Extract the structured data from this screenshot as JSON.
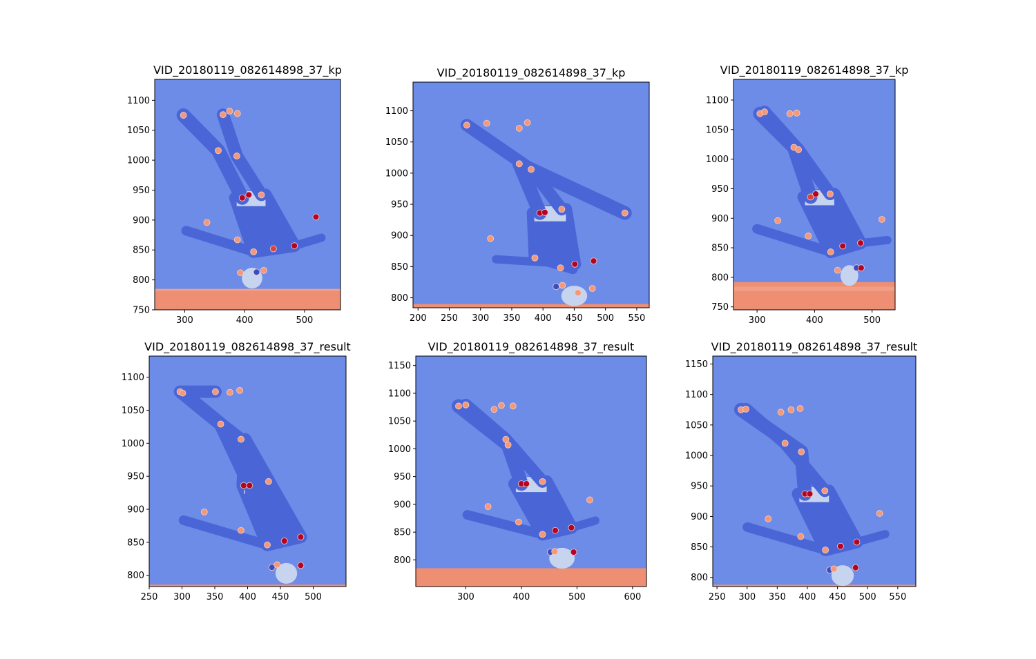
{
  "colors": {
    "background_warm": "#ee8f73",
    "ice_light": "#f3b39d",
    "wall_blue": "#6d8ce8",
    "skater_blue": "#4a66d6",
    "skater_light": "#c7d4f0",
    "dark_red": "#b40426",
    "salmon": "#f4987a",
    "mid_red": "#d6453b"
  },
  "chart_data": [
    {
      "type": "heatmap",
      "title": "VID_20180119_082614898_37_kp",
      "xlim": [
        250,
        560
      ],
      "ylim": [
        1135,
        750
      ],
      "xticks": [
        300,
        400,
        500
      ],
      "yticks": [
        750,
        800,
        850,
        900,
        950,
        1000,
        1050,
        1100
      ],
      "wall_bottom": 785,
      "keypoints": [
        {
          "x": 393,
          "y": 812,
          "c": "salmon"
        },
        {
          "x": 420,
          "y": 813,
          "c": "blue"
        },
        {
          "x": 432,
          "y": 816,
          "c": "salmon"
        },
        {
          "x": 388,
          "y": 867,
          "c": "salmon"
        },
        {
          "x": 415,
          "y": 847,
          "c": "salmon"
        },
        {
          "x": 448,
          "y": 852,
          "c": "mid"
        },
        {
          "x": 483,
          "y": 857,
          "c": "dark"
        },
        {
          "x": 337,
          "y": 896,
          "c": "salmon"
        },
        {
          "x": 519,
          "y": 905,
          "c": "dark"
        },
        {
          "x": 396,
          "y": 937,
          "c": "dark"
        },
        {
          "x": 407,
          "y": 942,
          "c": "dark"
        },
        {
          "x": 428,
          "y": 942,
          "c": "salmon"
        },
        {
          "x": 356,
          "y": 1016,
          "c": "salmon"
        },
        {
          "x": 387,
          "y": 1007,
          "c": "salmon"
        },
        {
          "x": 298,
          "y": 1075,
          "c": "salmon"
        },
        {
          "x": 364,
          "y": 1076,
          "c": "salmon"
        },
        {
          "x": 375,
          "y": 1082,
          "c": "salmon"
        },
        {
          "x": 388,
          "y": 1078,
          "c": "salmon"
        }
      ]
    },
    {
      "type": "heatmap",
      "title": "VID_20180119_082614898_37_kp",
      "xlim": [
        192,
        570
      ],
      "ylim": [
        1146,
        784
      ],
      "xticks": [
        200,
        250,
        300,
        350,
        400,
        450,
        500,
        550
      ],
      "yticks": [
        800,
        850,
        900,
        950,
        1000,
        1050,
        1100
      ],
      "wall_bottom": 790,
      "keypoints": [
        {
          "x": 421,
          "y": 818,
          "c": "blue"
        },
        {
          "x": 431,
          "y": 820,
          "c": "salmon"
        },
        {
          "x": 479,
          "y": 815,
          "c": "salmon"
        },
        {
          "x": 456,
          "y": 808,
          "c": "salmon"
        },
        {
          "x": 387,
          "y": 864,
          "c": "salmon"
        },
        {
          "x": 428,
          "y": 848,
          "c": "salmon"
        },
        {
          "x": 451,
          "y": 854,
          "c": "dark"
        },
        {
          "x": 481,
          "y": 859,
          "c": "dark"
        },
        {
          "x": 316,
          "y": 895,
          "c": "salmon"
        },
        {
          "x": 395,
          "y": 936,
          "c": "dark"
        },
        {
          "x": 403,
          "y": 937,
          "c": "dark"
        },
        {
          "x": 430,
          "y": 942,
          "c": "salmon"
        },
        {
          "x": 362,
          "y": 1015,
          "c": "salmon"
        },
        {
          "x": 381,
          "y": 1006,
          "c": "salmon"
        },
        {
          "x": 531,
          "y": 936,
          "c": "salmon"
        },
        {
          "x": 278,
          "y": 1077,
          "c": "salmon"
        },
        {
          "x": 310,
          "y": 1080,
          "c": "salmon"
        },
        {
          "x": 362,
          "y": 1072,
          "c": "salmon"
        },
        {
          "x": 375,
          "y": 1081,
          "c": "salmon"
        }
      ]
    },
    {
      "type": "heatmap",
      "title": "VID_20180119_082614898_37_kp",
      "xlim": [
        259,
        540
      ],
      "ylim": [
        1135,
        745
      ],
      "xticks": [
        300,
        400,
        500
      ],
      "yticks": [
        750,
        800,
        850,
        900,
        950,
        1000,
        1050,
        1100
      ],
      "wall_bottom": 792,
      "keypoints": [
        {
          "x": 440,
          "y": 812,
          "c": "salmon"
        },
        {
          "x": 473,
          "y": 816,
          "c": "blue"
        },
        {
          "x": 481,
          "y": 816,
          "c": "dark"
        },
        {
          "x": 389,
          "y": 870,
          "c": "salmon"
        },
        {
          "x": 428,
          "y": 843,
          "c": "salmon"
        },
        {
          "x": 449,
          "y": 853,
          "c": "dark"
        },
        {
          "x": 480,
          "y": 858,
          "c": "dark"
        },
        {
          "x": 336,
          "y": 896,
          "c": "salmon"
        },
        {
          "x": 517,
          "y": 898,
          "c": "salmon"
        },
        {
          "x": 393,
          "y": 936,
          "c": "mid"
        },
        {
          "x": 402,
          "y": 941,
          "c": "dark"
        },
        {
          "x": 427,
          "y": 941,
          "c": "salmon"
        },
        {
          "x": 364,
          "y": 1020,
          "c": "salmon"
        },
        {
          "x": 372,
          "y": 1016,
          "c": "salmon"
        },
        {
          "x": 305,
          "y": 1077,
          "c": "salmon"
        },
        {
          "x": 313,
          "y": 1080,
          "c": "salmon"
        },
        {
          "x": 357,
          "y": 1077,
          "c": "salmon"
        },
        {
          "x": 369,
          "y": 1078,
          "c": "salmon"
        }
      ]
    },
    {
      "type": "heatmap",
      "title": "VID_20180119_082614898_37_result",
      "xlim": [
        250,
        550
      ],
      "ylim": [
        1132,
        783
      ],
      "xticks": [
        250,
        300,
        350,
        400,
        450,
        500
      ],
      "yticks": [
        800,
        850,
        900,
        950,
        1000,
        1050,
        1100
      ],
      "wall_bottom": 786,
      "keypoints": [
        {
          "x": 437,
          "y": 812,
          "c": "blue"
        },
        {
          "x": 445,
          "y": 816,
          "c": "salmon"
        },
        {
          "x": 481,
          "y": 815,
          "c": "dark"
        },
        {
          "x": 390,
          "y": 868,
          "c": "salmon"
        },
        {
          "x": 430,
          "y": 846,
          "c": "salmon"
        },
        {
          "x": 456,
          "y": 852,
          "c": "dark"
        },
        {
          "x": 481,
          "y": 858,
          "c": "dark"
        },
        {
          "x": 334,
          "y": 896,
          "c": "salmon"
        },
        {
          "x": 394,
          "y": 936,
          "c": "dark"
        },
        {
          "x": 403,
          "y": 936,
          "c": "dark"
        },
        {
          "x": 432,
          "y": 942,
          "c": "salmon"
        },
        {
          "x": 390,
          "y": 1006,
          "c": "salmon"
        },
        {
          "x": 359,
          "y": 1029,
          "c": "salmon"
        },
        {
          "x": 297,
          "y": 1078,
          "c": "salmon"
        },
        {
          "x": 301,
          "y": 1076,
          "c": "salmon"
        },
        {
          "x": 351,
          "y": 1078,
          "c": "salmon"
        },
        {
          "x": 373,
          "y": 1077,
          "c": "salmon"
        },
        {
          "x": 388,
          "y": 1080,
          "c": "salmon"
        }
      ]
    },
    {
      "type": "heatmap",
      "title": "VID_20180119_082614898_37_result",
      "xlim": [
        210,
        625
      ],
      "ylim": [
        1167,
        752
      ],
      "xticks": [
        300,
        400,
        500,
        600
      ],
      "yticks": [
        800,
        850,
        900,
        950,
        1000,
        1050,
        1100,
        1150
      ],
      "wall_bottom": 785,
      "keypoints": [
        {
          "x": 452,
          "y": 814,
          "c": "blue"
        },
        {
          "x": 460,
          "y": 815,
          "c": "salmon"
        },
        {
          "x": 494,
          "y": 814,
          "c": "dark"
        },
        {
          "x": 395,
          "y": 868,
          "c": "salmon"
        },
        {
          "x": 438,
          "y": 846,
          "c": "salmon"
        },
        {
          "x": 461,
          "y": 853,
          "c": "dark"
        },
        {
          "x": 490,
          "y": 858,
          "c": "dark"
        },
        {
          "x": 340,
          "y": 896,
          "c": "salmon"
        },
        {
          "x": 523,
          "y": 908,
          "c": "salmon"
        },
        {
          "x": 400,
          "y": 937,
          "c": "dark"
        },
        {
          "x": 409,
          "y": 937,
          "c": "dark"
        },
        {
          "x": 438,
          "y": 941,
          "c": "salmon"
        },
        {
          "x": 376,
          "y": 1007,
          "c": "salmon"
        },
        {
          "x": 372,
          "y": 1017,
          "c": "salmon"
        },
        {
          "x": 287,
          "y": 1077,
          "c": "salmon"
        },
        {
          "x": 300,
          "y": 1079,
          "c": "salmon"
        },
        {
          "x": 351,
          "y": 1071,
          "c": "salmon"
        },
        {
          "x": 364,
          "y": 1078,
          "c": "salmon"
        },
        {
          "x": 385,
          "y": 1077,
          "c": "salmon"
        }
      ]
    },
    {
      "type": "heatmap",
      "title": "VID_20180119_082614898_37_result",
      "xlim": [
        243,
        580
      ],
      "ylim": [
        1163,
        785
      ],
      "xticks": [
        250,
        300,
        350,
        400,
        450,
        500,
        550
      ],
      "yticks": [
        800,
        850,
        900,
        950,
        1000,
        1050,
        1100,
        1150
      ],
      "wall_bottom": 788,
      "keypoints": [
        {
          "x": 437,
          "y": 812,
          "c": "blue"
        },
        {
          "x": 444,
          "y": 814,
          "c": "salmon"
        },
        {
          "x": 480,
          "y": 816,
          "c": "dark"
        },
        {
          "x": 389,
          "y": 867,
          "c": "salmon"
        },
        {
          "x": 430,
          "y": 845,
          "c": "salmon"
        },
        {
          "x": 455,
          "y": 851,
          "c": "dark"
        },
        {
          "x": 482,
          "y": 858,
          "c": "dark"
        },
        {
          "x": 335,
          "y": 896,
          "c": "salmon"
        },
        {
          "x": 520,
          "y": 905,
          "c": "salmon"
        },
        {
          "x": 396,
          "y": 937,
          "c": "dark"
        },
        {
          "x": 404,
          "y": 937,
          "c": "dark"
        },
        {
          "x": 429,
          "y": 942,
          "c": "salmon"
        },
        {
          "x": 390,
          "y": 1006,
          "c": "salmon"
        },
        {
          "x": 363,
          "y": 1020,
          "c": "salmon"
        },
        {
          "x": 290,
          "y": 1075,
          "c": "salmon"
        },
        {
          "x": 298,
          "y": 1076,
          "c": "salmon"
        },
        {
          "x": 356,
          "y": 1071,
          "c": "salmon"
        },
        {
          "x": 373,
          "y": 1075,
          "c": "salmon"
        },
        {
          "x": 388,
          "y": 1077,
          "c": "salmon"
        }
      ]
    }
  ]
}
